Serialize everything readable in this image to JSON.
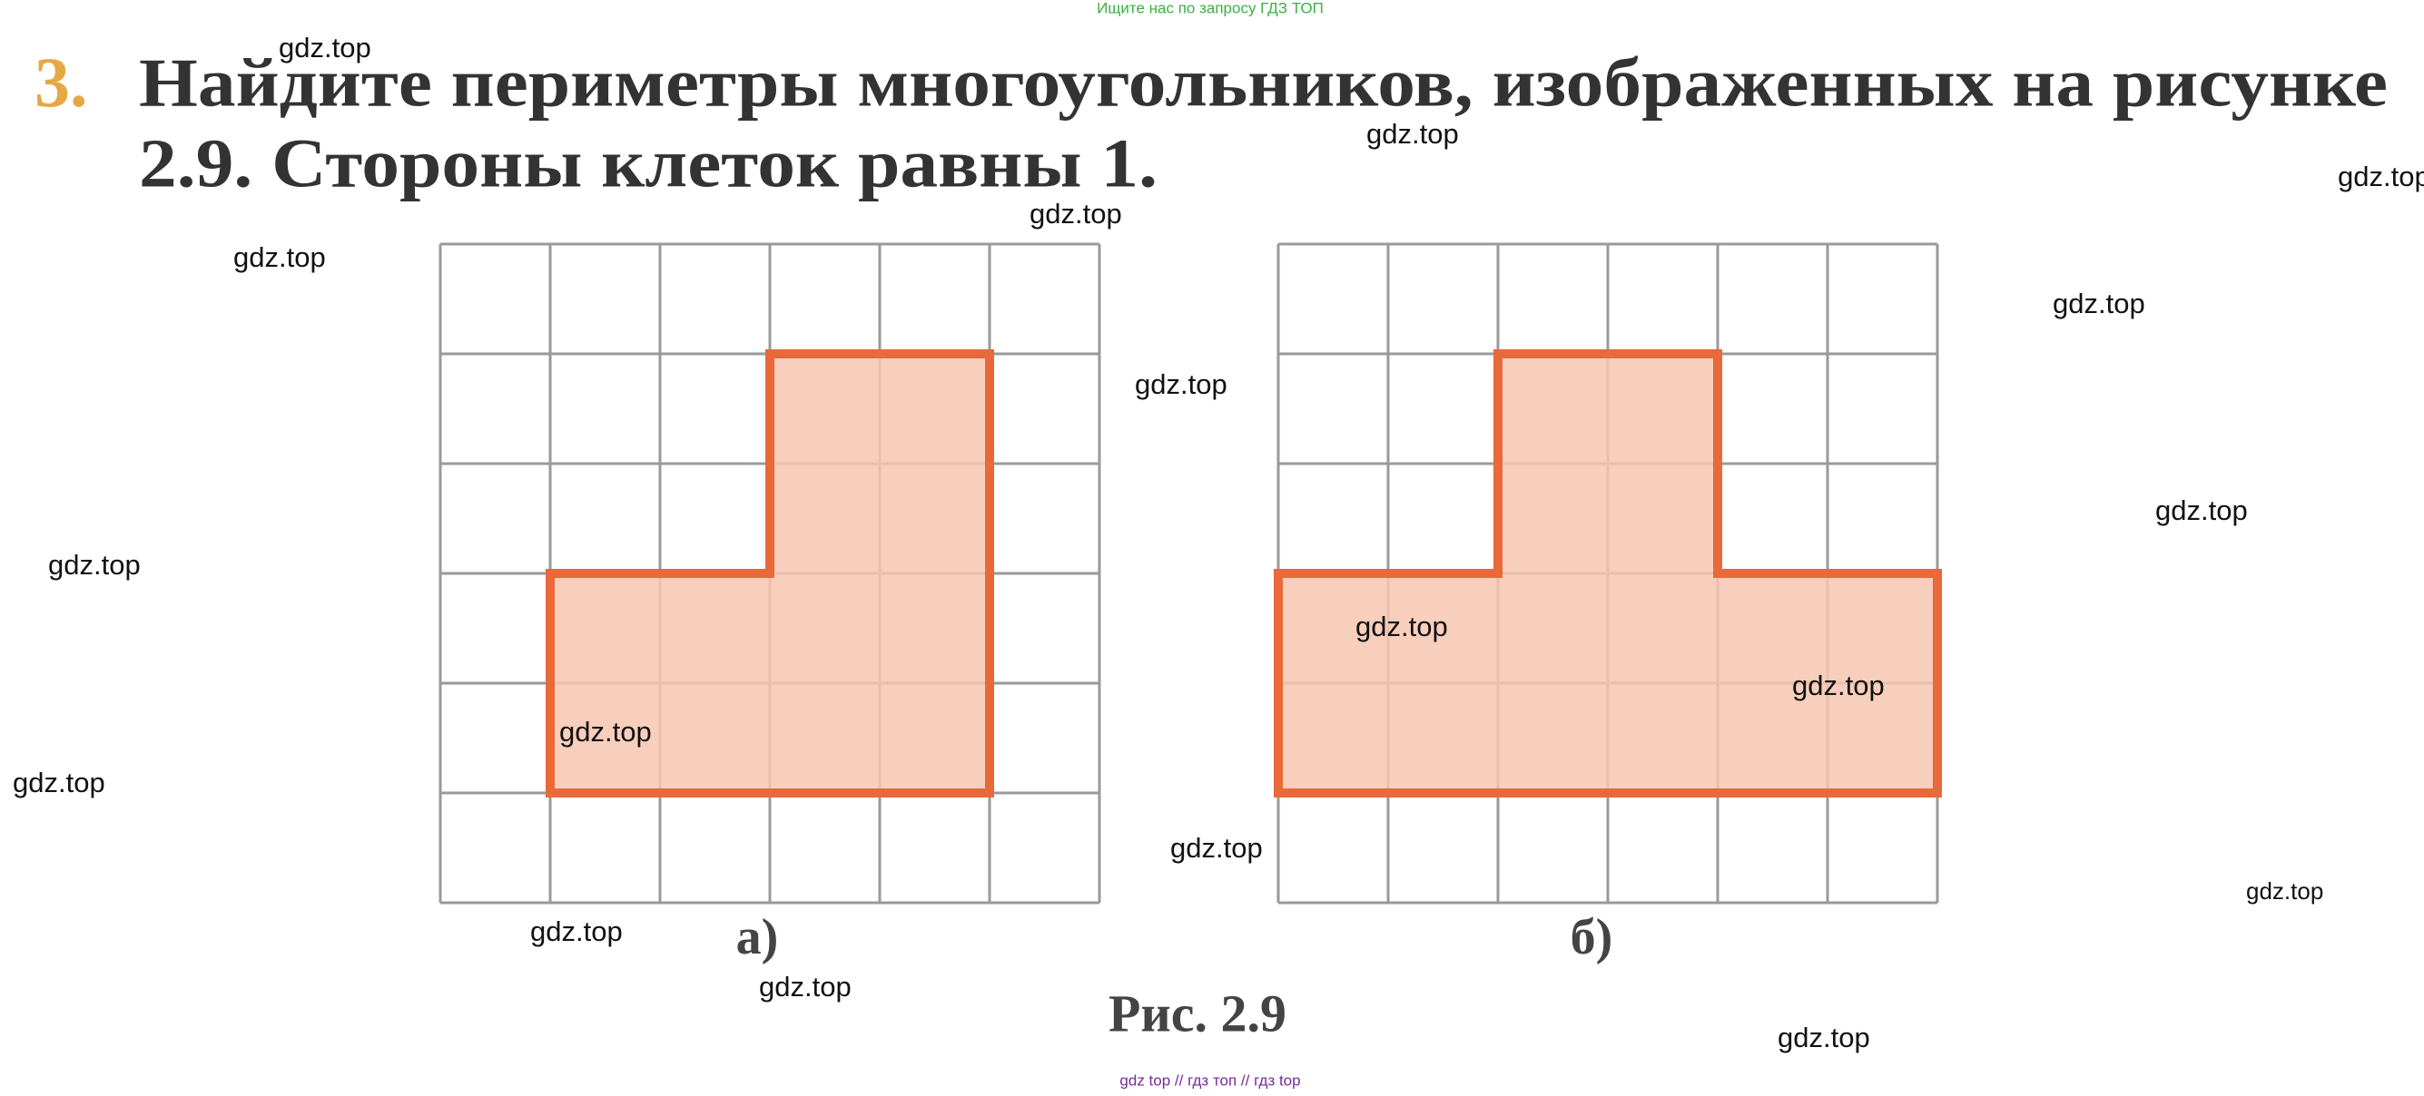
{
  "header": {
    "note": "Ищите нас по запросу ГДЗ ТОП"
  },
  "problem": {
    "number": "3.",
    "line1": "Найдите периметры многоугольников, изображенных на рисунке",
    "line2": "2.9. Стороны клеток равны 1."
  },
  "figure": {
    "label_a": "а)",
    "label_b": "б)",
    "caption": "Рис. 2.9"
  },
  "watermarks": [
    "gdz.top",
    "gdz.top",
    "gdz.top",
    "gdz.top",
    "gdz.top",
    "gdz.top",
    "gdz.top",
    "gdz.top",
    "gdz.top",
    "gdz.top",
    "gdz.top",
    "gdz.top",
    "gdz.top",
    "gdz.top",
    "gdz.top",
    "gdz.top",
    "gdz.top",
    "gdz.top"
  ],
  "footer": {
    "note": "gdz top  //  гдз топ  //  гдз top"
  }
}
